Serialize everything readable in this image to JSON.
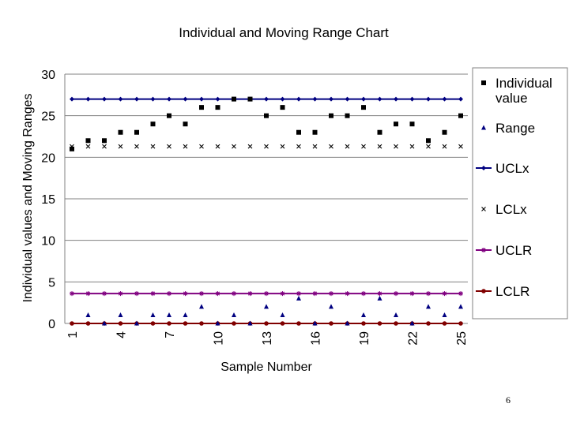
{
  "page_number": "6",
  "chart_data": {
    "type": "line",
    "title": "Individual and Moving Range Chart",
    "xlabel": "Sample Number",
    "ylabel": "Individual values and Moving Ranges",
    "ylim": [
      0,
      30
    ],
    "yticks": [
      "0",
      "5",
      "10",
      "15",
      "20",
      "25",
      "30"
    ],
    "x": [
      1,
      2,
      3,
      4,
      5,
      6,
      7,
      8,
      9,
      10,
      11,
      12,
      13,
      14,
      15,
      16,
      17,
      18,
      19,
      20,
      21,
      22,
      23,
      24,
      25
    ],
    "xticks": [
      "1",
      "4",
      "7",
      "10",
      "13",
      "16",
      "19",
      "22",
      "25"
    ],
    "grid": "horizontal",
    "legend_position": "right",
    "series": [
      {
        "name": "Individual value",
        "marker": "square",
        "line": false,
        "color": "#000000",
        "values": [
          21,
          22,
          22,
          23,
          23,
          24,
          25,
          24,
          26,
          26,
          27,
          27,
          25,
          26,
          23,
          23,
          25,
          25,
          26,
          23,
          24,
          24,
          22,
          23,
          25
        ]
      },
      {
        "name": "Range",
        "marker": "triangle",
        "line": false,
        "color": "#000080",
        "values": [
          null,
          1,
          0,
          1,
          0,
          1,
          1,
          1,
          2,
          0,
          1,
          0,
          2,
          1,
          3,
          0,
          2,
          0,
          1,
          3,
          1,
          0,
          2,
          1,
          2
        ]
      },
      {
        "name": "UCLx",
        "marker": "diamond",
        "line": true,
        "color": "#000080",
        "values": [
          27,
          27,
          27,
          27,
          27,
          27,
          27,
          27,
          27,
          27,
          27,
          27,
          27,
          27,
          27,
          27,
          27,
          27,
          27,
          27,
          27,
          27,
          27,
          27,
          27
        ]
      },
      {
        "name": "LCLx",
        "marker": "x",
        "line": false,
        "color": "#000000",
        "values": [
          21.3,
          21.3,
          21.3,
          21.3,
          21.3,
          21.3,
          21.3,
          21.3,
          21.3,
          21.3,
          21.3,
          21.3,
          21.3,
          21.3,
          21.3,
          21.3,
          21.3,
          21.3,
          21.3,
          21.3,
          21.3,
          21.3,
          21.3,
          21.3,
          21.3
        ]
      },
      {
        "name": "UCLR",
        "marker": "star",
        "line": true,
        "color": "#800080",
        "values": [
          3.6,
          3.6,
          3.6,
          3.6,
          3.6,
          3.6,
          3.6,
          3.6,
          3.6,
          3.6,
          3.6,
          3.6,
          3.6,
          3.6,
          3.6,
          3.6,
          3.6,
          3.6,
          3.6,
          3.6,
          3.6,
          3.6,
          3.6,
          3.6,
          3.6
        ]
      },
      {
        "name": "LCLR",
        "marker": "circle",
        "line": true,
        "color": "#800000",
        "values": [
          0,
          0,
          0,
          0,
          0,
          0,
          0,
          0,
          0,
          0,
          0,
          0,
          0,
          0,
          0,
          0,
          0,
          0,
          0,
          0,
          0,
          0,
          0,
          0,
          0
        ]
      }
    ]
  }
}
